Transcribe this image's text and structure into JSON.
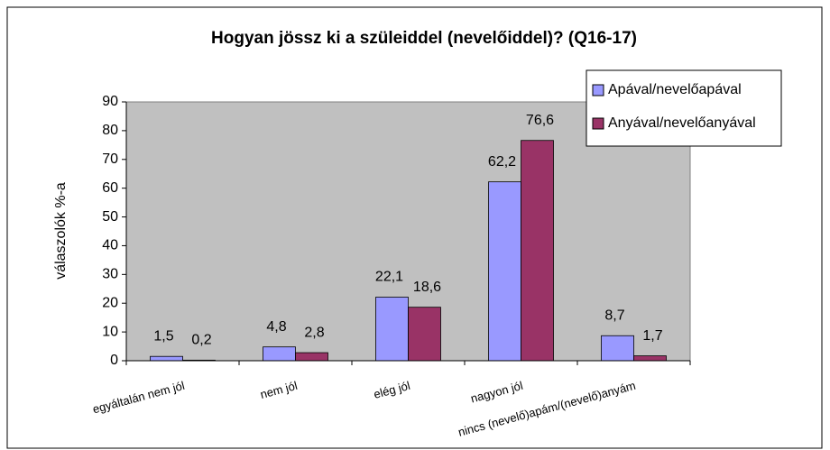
{
  "chart_data": {
    "type": "bar",
    "title": "Hogyan jössz ki a szüleiddel (nevelőiddel)? (Q16-17)",
    "y_label": "válaszolók %-a",
    "categories": [
      "egyáltalán nem jól",
      "nem jól",
      "elég jól",
      "nagyon jól",
      "nincs (nevelő)apám/(nevelő)anyám"
    ],
    "series": [
      {
        "name": "Apával/nevelőapával",
        "color": "#9999ff",
        "values": [
          1.5,
          4.8,
          22.1,
          62.2,
          8.7
        ],
        "value_labels": [
          "1,5",
          "4,8",
          "22,1",
          "62,2",
          "8,7"
        ]
      },
      {
        "name": "Anyával/nevelőanyával",
        "color": "#993366",
        "values": [
          0.2,
          2.8,
          18.6,
          76.6,
          1.7
        ],
        "value_labels": [
          "0,2",
          "2,8",
          "18,6",
          "76,6",
          "1,7"
        ]
      }
    ],
    "ylim": [
      0,
      90
    ],
    "yticks": [
      0,
      10,
      20,
      30,
      40,
      50,
      60,
      70,
      80,
      90
    ],
    "grid": false,
    "legend": "top-right"
  }
}
